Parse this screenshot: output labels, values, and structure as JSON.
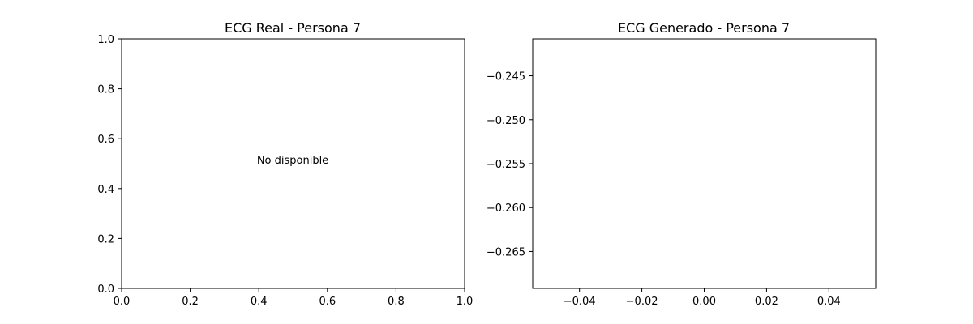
{
  "chart_data": [
    {
      "type": "line",
      "title": "ECG Real - Persona 7",
      "xlabel": "",
      "ylabel": "",
      "xlim": [
        0.0,
        1.0
      ],
      "ylim": [
        0.0,
        1.0
      ],
      "xticks": [
        "0.0",
        "0.2",
        "0.4",
        "0.6",
        "0.8",
        "1.0"
      ],
      "yticks": [
        "0.0",
        "0.2",
        "0.4",
        "0.6",
        "0.8",
        "1.0"
      ],
      "annotation": "No disponible",
      "series": [],
      "grid": false
    },
    {
      "type": "line",
      "title": "ECG Generado - Persona 7",
      "xlabel": "",
      "ylabel": "",
      "xlim": [
        -0.055,
        0.055
      ],
      "ylim": [
        -0.2692,
        -0.2408
      ],
      "xticks": [
        "−0.04",
        "−0.02",
        "0.00",
        "0.02",
        "0.04"
      ],
      "yticks": [
        "−0.245",
        "−0.250",
        "−0.255",
        "−0.260",
        "−0.265"
      ],
      "series": [],
      "grid": false
    }
  ]
}
